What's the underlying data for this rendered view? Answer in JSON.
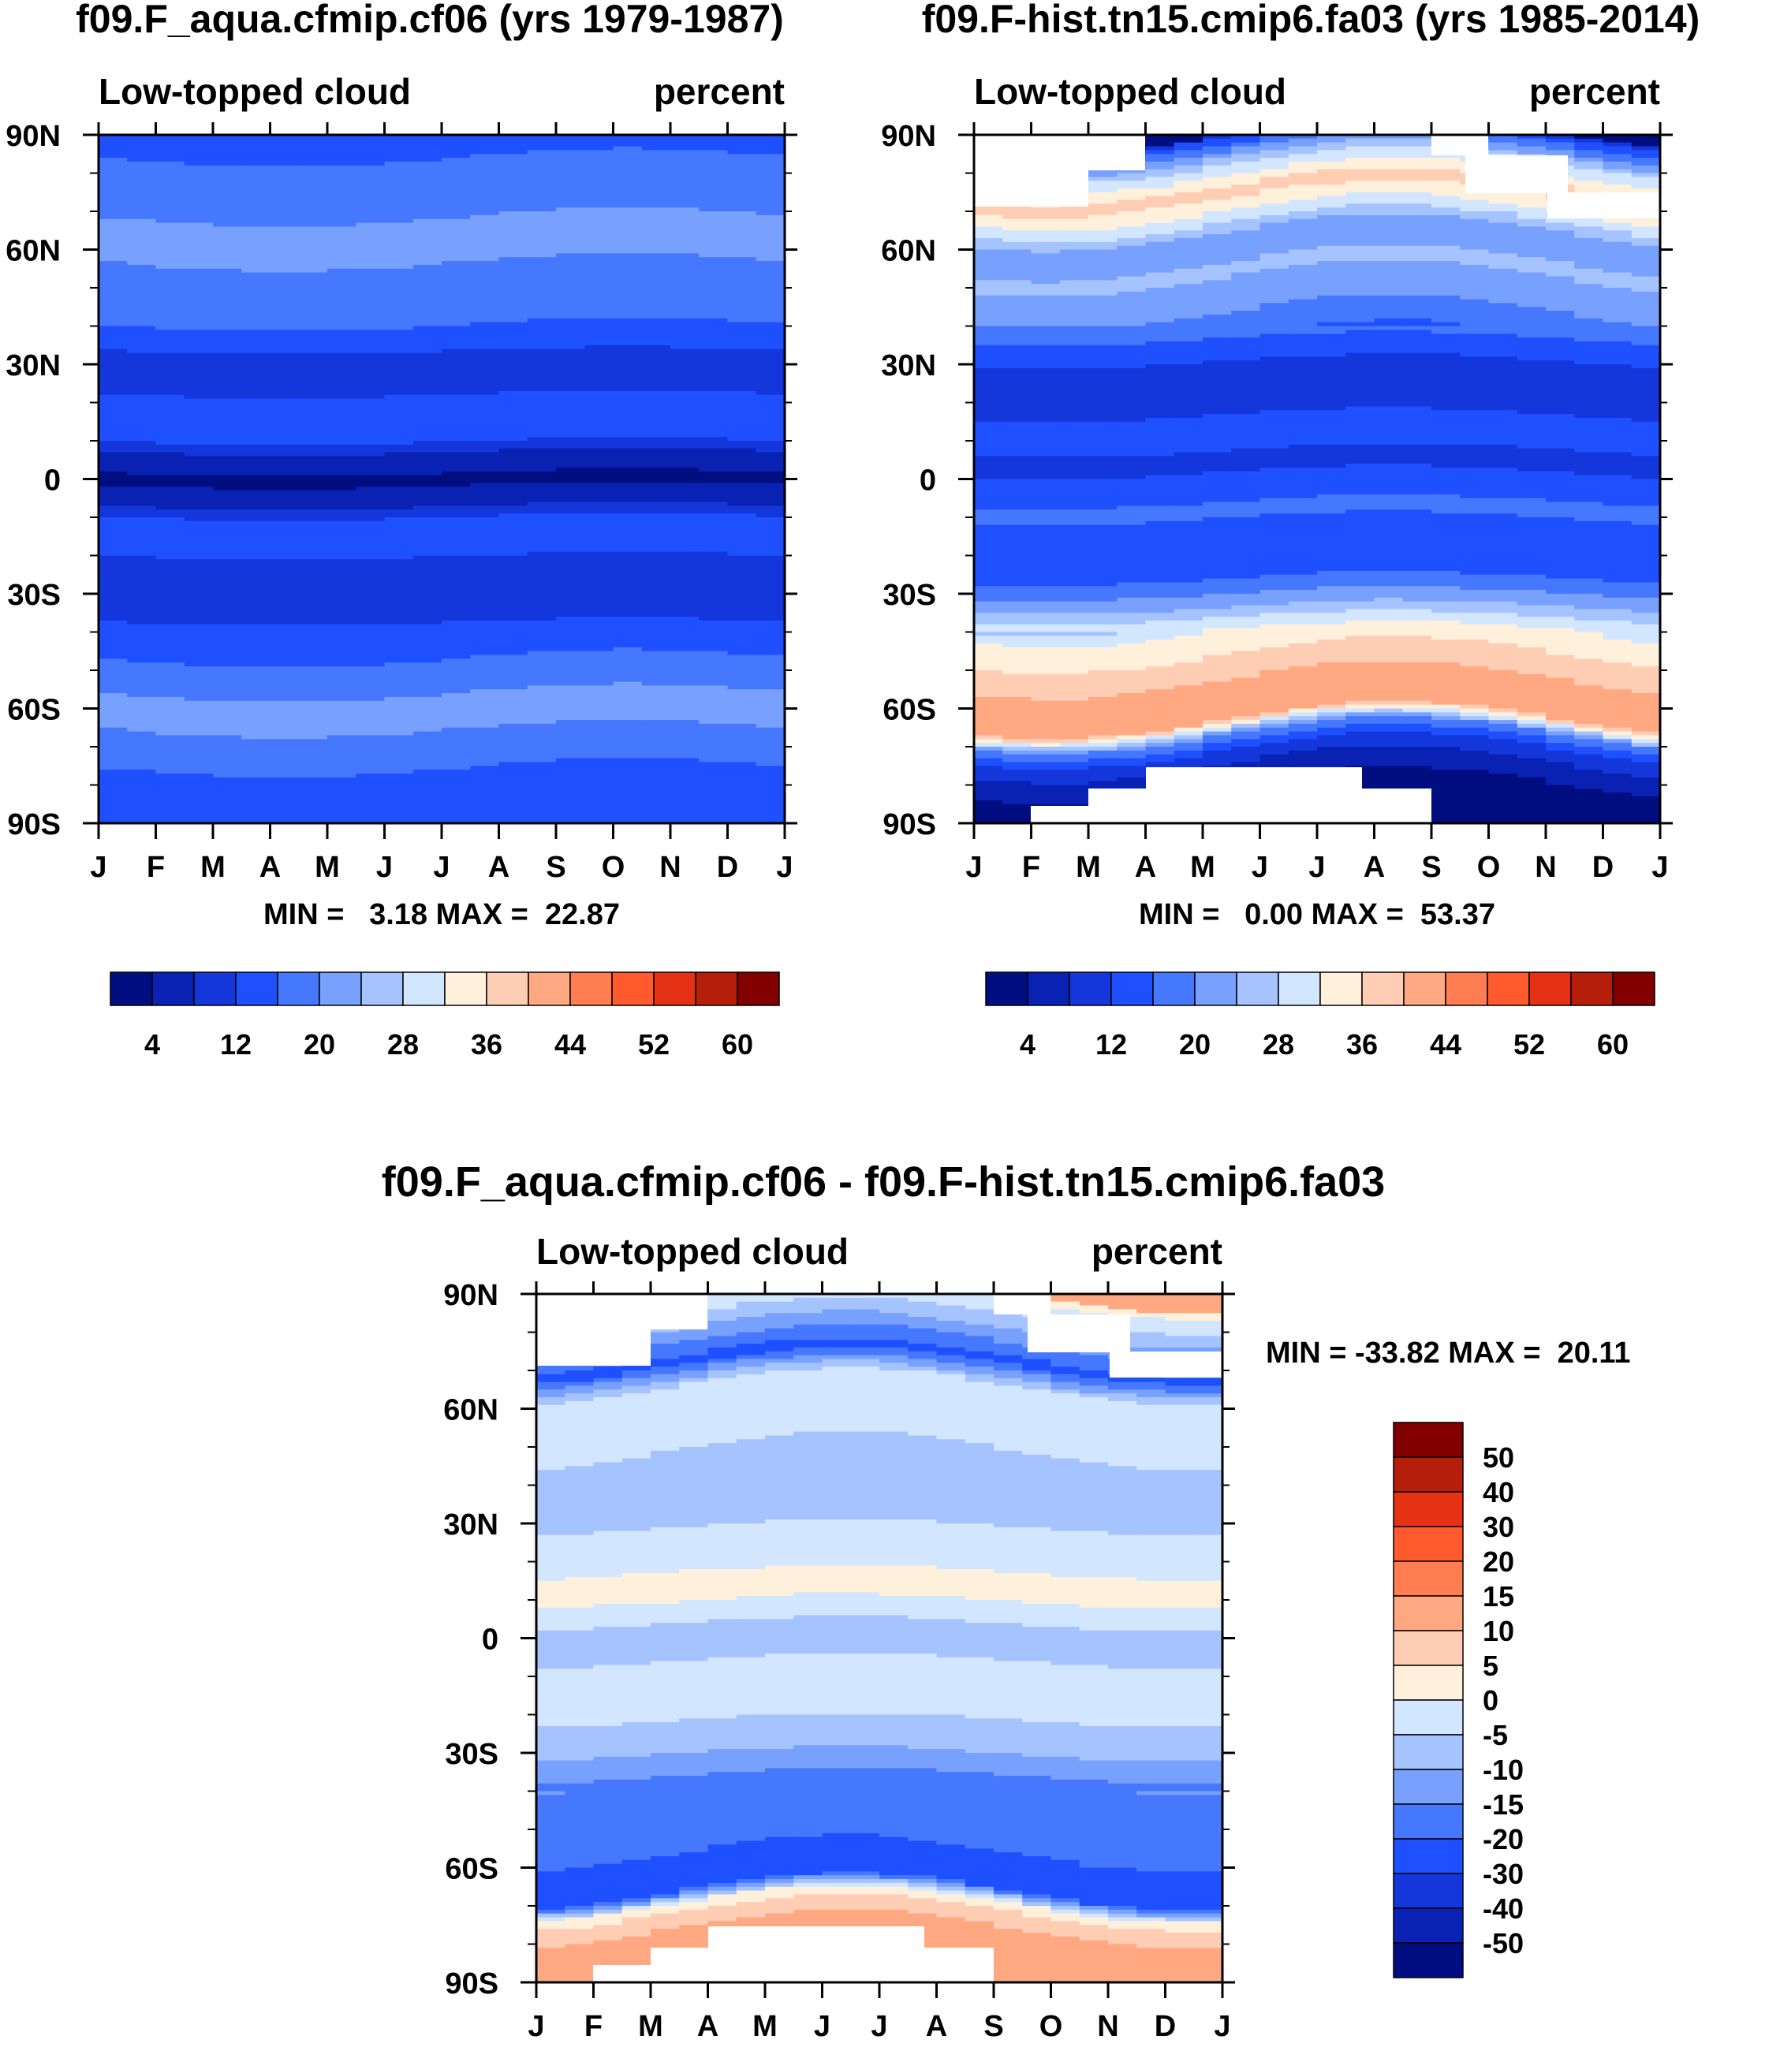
{
  "colors": {
    "seq": [
      "#000e82",
      "#0a22b4",
      "#1437dc",
      "#1e50ff",
      "#4678ff",
      "#78a0ff",
      "#a5c3ff",
      "#d2e6ff",
      "#fff0dc",
      "#ffcdb4",
      "#ffa882",
      "#ff7d50",
      "#ff5a2d",
      "#e63214",
      "#b41e0a",
      "#820000"
    ],
    "white": "#ffffff"
  },
  "chart_data": [
    {
      "type": "heatmap",
      "title": "f09.F_aqua.cfmip.cf06 (yrs 1979-1987)",
      "subtitle_left": "Low-topped cloud",
      "subtitle_right": "percent",
      "x_ticks": [
        "J",
        "F",
        "M",
        "A",
        "M",
        "J",
        "J",
        "A",
        "S",
        "O",
        "N",
        "D",
        "J"
      ],
      "y_ticks": [
        "90N",
        "60N",
        "30N",
        "0",
        "30S",
        "60S",
        "90S"
      ],
      "ylim": [
        -90,
        90
      ],
      "min_max_text": "MIN =   3.18 MAX =  22.87",
      "colorbar": {
        "orientation": "horizontal",
        "labels": [
          "4",
          "12",
          "20",
          "28",
          "36",
          "44",
          "52",
          "60"
        ]
      },
      "lat_profile": [
        {
          "lat": 90,
          "v": 13
        },
        {
          "lat": 82,
          "v": 17
        },
        {
          "lat": 72,
          "v": 17
        },
        {
          "lat": 66,
          "v": 22
        },
        {
          "lat": 52,
          "v": 19
        },
        {
          "lat": 42,
          "v": 17
        },
        {
          "lat": 36,
          "v": 14
        },
        {
          "lat": 30,
          "v": 9
        },
        {
          "lat": 22,
          "v": 12
        },
        {
          "lat": 12,
          "v": 15
        },
        {
          "lat": 5,
          "v": 5
        },
        {
          "lat": 0,
          "v": 3.5
        },
        {
          "lat": -5,
          "v": 5
        },
        {
          "lat": -10,
          "v": 12
        },
        {
          "lat": -20,
          "v": 12
        },
        {
          "lat": -25,
          "v": 9
        },
        {
          "lat": -35,
          "v": 11
        },
        {
          "lat": -42,
          "v": 14
        },
        {
          "lat": -52,
          "v": 18
        },
        {
          "lat": -60,
          "v": 22
        },
        {
          "lat": -68,
          "v": 19
        },
        {
          "lat": -78,
          "v": 15
        },
        {
          "lat": -90,
          "v": 13
        }
      ]
    },
    {
      "type": "heatmap",
      "title": "f09.F-hist.tn15.cmip6.fa03 (yrs 1985-2014)",
      "subtitle_left": "Low-topped cloud",
      "subtitle_right": "percent",
      "x_ticks": [
        "J",
        "F",
        "M",
        "A",
        "M",
        "J",
        "J",
        "A",
        "S",
        "O",
        "N",
        "D",
        "J"
      ],
      "y_ticks": [
        "90N",
        "60N",
        "30N",
        "0",
        "30S",
        "60S",
        "90S"
      ],
      "ylim": [
        -90,
        90
      ],
      "min_max_text": "MIN =   0.00 MAX =  53.37",
      "colorbar": {
        "orientation": "horizontal",
        "labels": [
          "4",
          "12",
          "20",
          "28",
          "36",
          "44",
          "52",
          "60"
        ]
      },
      "lat_profile": [
        {
          "lat": 90,
          "v": 10
        },
        {
          "lat": 82,
          "v": 28
        },
        {
          "lat": 75,
          "v": 38
        },
        {
          "lat": 68,
          "v": 30
        },
        {
          "lat": 62,
          "v": 20
        },
        {
          "lat": 55,
          "v": 25
        },
        {
          "lat": 45,
          "v": 21
        },
        {
          "lat": 35,
          "v": 15
        },
        {
          "lat": 28,
          "v": 10
        },
        {
          "lat": 20,
          "v": 11
        },
        {
          "lat": 10,
          "v": 14
        },
        {
          "lat": 5,
          "v": 10
        },
        {
          "lat": 0,
          "v": 13
        },
        {
          "lat": -8,
          "v": 17
        },
        {
          "lat": -15,
          "v": 14
        },
        {
          "lat": -25,
          "v": 15
        },
        {
          "lat": -32,
          "v": 22
        },
        {
          "lat": -40,
          "v": 33
        },
        {
          "lat": -50,
          "v": 38
        },
        {
          "lat": -58,
          "v": 44
        },
        {
          "lat": -63,
          "v": 40
        },
        {
          "lat": -67,
          "v": 20
        },
        {
          "lat": -72,
          "v": 10
        },
        {
          "lat": -80,
          "v": 4
        },
        {
          "lat": -90,
          "v": 2
        }
      ]
    },
    {
      "type": "heatmap",
      "title": "f09.F_aqua.cfmip.cf06 - f09.F-hist.tn15.cmip6.fa03",
      "subtitle_left": "Low-topped cloud",
      "subtitle_right": "percent",
      "x_ticks": [
        "J",
        "F",
        "M",
        "A",
        "M",
        "J",
        "J",
        "A",
        "S",
        "O",
        "N",
        "D",
        "J"
      ],
      "y_ticks": [
        "90N",
        "60N",
        "30N",
        "0",
        "30S",
        "60S",
        "90S"
      ],
      "ylim": [
        -90,
        90
      ],
      "min_max_text": "MIN = -33.82 MAX =  20.11",
      "colorbar": {
        "orientation": "vertical",
        "labels": [
          "50",
          "40",
          "30",
          "20",
          "15",
          "10",
          "5",
          "0",
          "-5",
          "-10",
          "-15",
          "-20",
          "-30",
          "-40",
          "-50"
        ]
      },
      "lat_profile": [
        {
          "lat": 90,
          "v": 2
        },
        {
          "lat": 82,
          "v": -8
        },
        {
          "lat": 72,
          "v": -22
        },
        {
          "lat": 65,
          "v": -3
        },
        {
          "lat": 55,
          "v": -2
        },
        {
          "lat": 45,
          "v": -7
        },
        {
          "lat": 35,
          "v": -8
        },
        {
          "lat": 25,
          "v": -3
        },
        {
          "lat": 12,
          "v": 2
        },
        {
          "lat": 5,
          "v": -4
        },
        {
          "lat": 0,
          "v": -8
        },
        {
          "lat": -8,
          "v": -4
        },
        {
          "lat": -15,
          "v": -2
        },
        {
          "lat": -28,
          "v": -8
        },
        {
          "lat": -36,
          "v": -15
        },
        {
          "lat": -45,
          "v": -20
        },
        {
          "lat": -55,
          "v": -18
        },
        {
          "lat": -62,
          "v": -28
        },
        {
          "lat": -66,
          "v": -22
        },
        {
          "lat": -70,
          "v": 3
        },
        {
          "lat": -76,
          "v": 10
        },
        {
          "lat": -85,
          "v": 14
        },
        {
          "lat": -90,
          "v": 14
        }
      ]
    }
  ]
}
